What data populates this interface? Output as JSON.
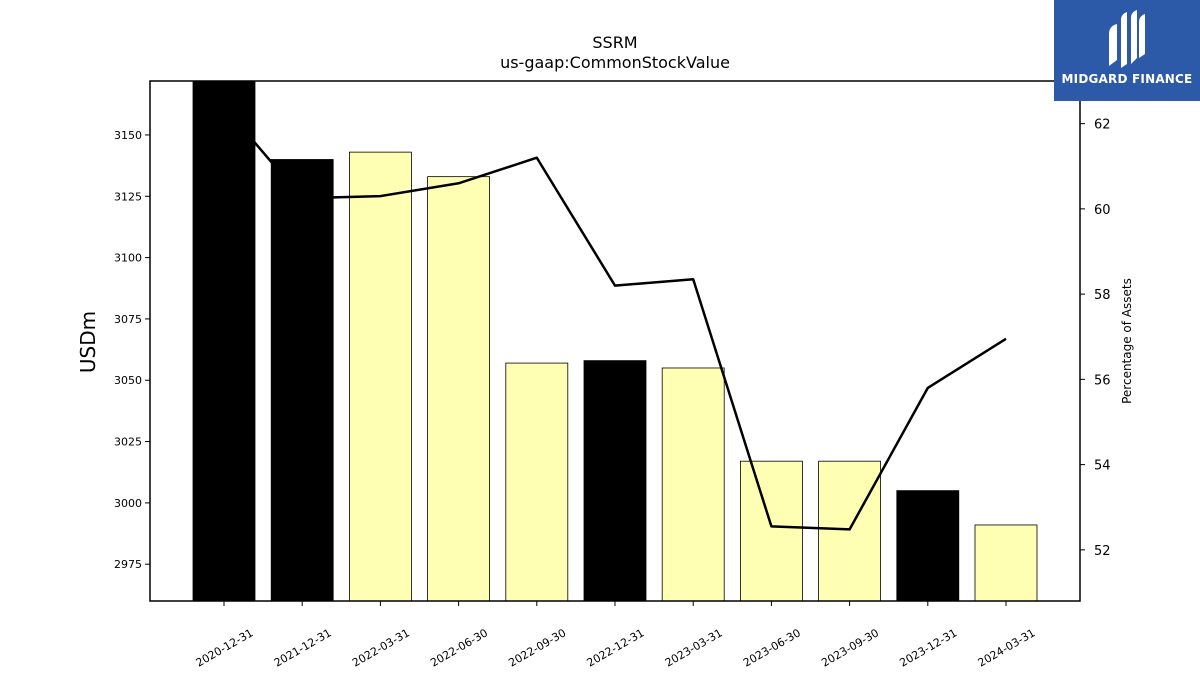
{
  "chart_data": {
    "type": "bar",
    "title": "SSRM",
    "subtitle": "us-gaap:CommonStockValue",
    "ylabel": "USDm",
    "y2label": "Percentage of Assets",
    "ylim": [
      2960,
      3172
    ],
    "y2lim": [
      50.8,
      63.0
    ],
    "yticks": [
      2975,
      3000,
      3025,
      3050,
      3075,
      3100,
      3125,
      3150
    ],
    "y2ticks": [
      52,
      54,
      56,
      58,
      60,
      62
    ],
    "categories": [
      "2020-12-31",
      "2021-12-31",
      "2022-03-31",
      "2022-06-30",
      "2022-09-30",
      "2022-12-31",
      "2023-03-31",
      "2023-06-30",
      "2023-09-30",
      "2023-12-31",
      "2024-03-31"
    ],
    "series": [
      {
        "kind": "bar",
        "values": [
          3172,
          3140,
          3143,
          3133,
          3057,
          3058,
          3055,
          3017,
          3017,
          3005,
          2991
        ],
        "colors": [
          "#000000",
          "#000000",
          "#ffffb4",
          "#ffffb4",
          "#ffffb4",
          "#000000",
          "#ffffb4",
          "#ffffb4",
          "#ffffb4",
          "#000000",
          "#ffffb4"
        ]
      },
      {
        "kind": "line",
        "axis": "right",
        "values": [
          62.4,
          60.25,
          60.3,
          60.6,
          61.2,
          58.2,
          58.35,
          52.55,
          52.48,
          55.8,
          56.95
        ]
      }
    ],
    "grid": false
  },
  "logo": {
    "text": "MIDGARD FINANCE",
    "icon": "midgard-m-logo-icon",
    "background": "#2d5aa8"
  }
}
